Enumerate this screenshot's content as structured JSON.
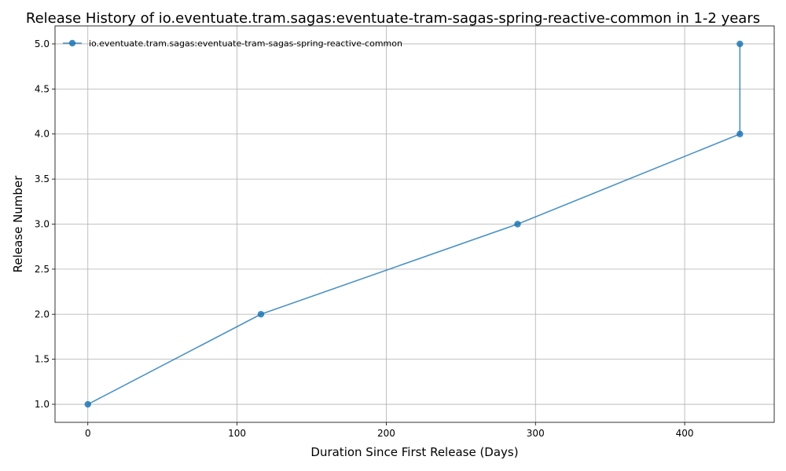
{
  "chart_data": {
    "type": "line",
    "title": "Release History of io.eventuate.tram.sagas:eventuate-tram-sagas-spring-reactive-common in 1-2 years",
    "xlabel": "Duration Since First Release (Days)",
    "ylabel": "Release Number",
    "xlim": [
      -22,
      460
    ],
    "ylim": [
      0.8,
      5.2
    ],
    "x_ticks": [
      0,
      100,
      200,
      300,
      400
    ],
    "y_ticks": [
      1.0,
      1.5,
      2.0,
      2.5,
      3.0,
      3.5,
      4.0,
      4.5,
      5.0
    ],
    "x_tick_labels": [
      "0",
      "100",
      "200",
      "300",
      "400"
    ],
    "y_tick_labels": [
      "1.0",
      "1.5",
      "2.0",
      "2.5",
      "3.0",
      "3.5",
      "4.0",
      "4.5",
      "5.0"
    ],
    "grid": true,
    "legend_position": "top-left",
    "series": [
      {
        "name": "io.eventuate.tram.sagas:eventuate-tram-sagas-spring-reactive-common",
        "color": "#1f77b4",
        "marker": "circle",
        "x": [
          0,
          116,
          288,
          437,
          437
        ],
        "y": [
          1,
          2,
          3,
          4,
          5
        ]
      }
    ]
  }
}
